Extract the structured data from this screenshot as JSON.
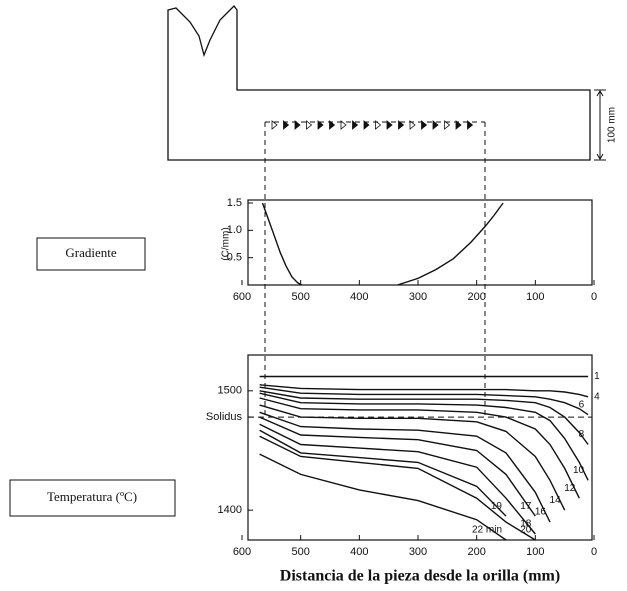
{
  "casting": {
    "dimension": "100 mm"
  },
  "panel_labels": [
    "Gradiente",
    "Temperatura (ºC)"
  ],
  "chart_data": [
    {
      "type": "line",
      "ylabel": "(C/mm)",
      "color": "#111",
      "xlim": [
        600,
        0
      ],
      "ylim": [
        0,
        1.5
      ],
      "xticks": [
        600,
        500,
        400,
        300,
        200,
        100,
        0
      ],
      "yticks": [
        0.5,
        {
          "value": 1,
          "label": "1.0"
        },
        1.5
      ],
      "series": [
        {
          "x": [
            565,
            555,
            545,
            535,
            525,
            515,
            505,
            498
          ],
          "values": [
            1.5,
            1.2,
            0.9,
            0.6,
            0.35,
            0.15,
            0.04,
            0
          ]
        },
        {
          "x": [
            335,
            300,
            270,
            240,
            210,
            185,
            170,
            155
          ],
          "values": [
            0,
            0.12,
            0.28,
            0.48,
            0.78,
            1.08,
            1.28,
            1.5
          ]
        }
      ]
    },
    {
      "type": "line",
      "xlabel": "Distancia de la pieza desde la orilla (mm)",
      "color": "#111",
      "xlim": [
        600,
        0
      ],
      "ylim": [
        1375,
        1530
      ],
      "xticks": [
        600,
        500,
        400,
        300,
        200,
        100,
        0
      ],
      "yticks": [
        1400,
        {
          "value": 1478,
          "label": "Solidus"
        },
        1500
      ],
      "x": [
        570,
        500,
        400,
        300,
        200,
        150,
        100,
        75,
        50,
        25,
        10
      ],
      "series": [
        {
          "name": "1",
          "values": [
            1512,
            1512,
            1512,
            1512,
            1512,
            1512,
            1512,
            1512,
            1512,
            1512,
            1512
          ]
        },
        {
          "name": "4",
          "values": [
            1505,
            1502,
            1501,
            1501,
            1501,
            1501,
            1500,
            1500,
            1499,
            1497,
            1495
          ]
        },
        {
          "name": "6",
          "values": [
            1503,
            1498,
            1497,
            1497,
            1497,
            1496,
            1495,
            1493,
            1490,
            1485,
            1480
          ]
        },
        {
          "name": "8",
          "values": [
            1500,
            1494,
            1493,
            1493,
            1493,
            1492,
            1490,
            1486,
            1478,
            1465,
            1455
          ]
        },
        {
          "name": "10",
          "values": [
            1498,
            1490,
            1489,
            1489,
            1488,
            1486,
            1482,
            1475,
            1460,
            1440,
            1425
          ]
        },
        {
          "name": "12",
          "values": [
            1494,
            1485,
            1484,
            1484,
            1482,
            1478,
            1468,
            1455,
            1435,
            1410,
            null
          ]
        },
        {
          "name": "14",
          "values": [
            1488,
            1478,
            1477,
            1477,
            1474,
            1466,
            1445,
            1425,
            1400,
            null,
            null
          ]
        },
        {
          "name": "16",
          "values": [
            1482,
            1470,
            1468,
            1467,
            1462,
            1448,
            1415,
            1390,
            null,
            null,
            null
          ]
        },
        {
          "name": "17",
          "values": [
            1478,
            1463,
            1461,
            1459,
            1450,
            1430,
            1395,
            null,
            null,
            null,
            null
          ]
        },
        {
          "name": "18",
          "values": [
            1472,
            1455,
            1452,
            1449,
            1436,
            1410,
            1380,
            null,
            null,
            null,
            null
          ]
        },
        {
          "name": "19",
          "values": [
            1467,
            1448,
            1444,
            1440,
            1420,
            1395,
            null,
            null,
            null,
            null,
            null
          ]
        },
        {
          "name": "20",
          "values": [
            1462,
            1445,
            1440,
            1435,
            1410,
            1390,
            1375,
            null,
            null,
            null,
            null
          ]
        },
        {
          "name": "22 min",
          "values": [
            1447,
            1430,
            1417,
            1408,
            1392,
            1375,
            null,
            null,
            null,
            null,
            null
          ]
        }
      ]
    }
  ]
}
